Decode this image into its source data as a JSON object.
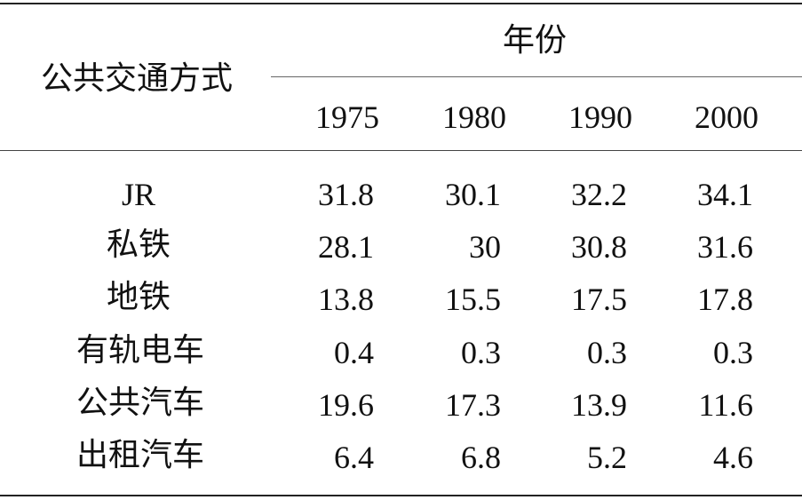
{
  "table": {
    "row_header": "公共交通方式",
    "group_header": "年份",
    "years": [
      "1975",
      "1980",
      "1990",
      "2000"
    ],
    "rows": [
      {
        "label": "JR",
        "values": [
          "31.8",
          "30.1",
          "32.2",
          "34.1"
        ]
      },
      {
        "label": "私铁",
        "values": [
          "28.1",
          "30",
          "30.8",
          "31.6"
        ]
      },
      {
        "label": "地铁",
        "values": [
          "13.8",
          "15.5",
          "17.5",
          "17.8"
        ]
      },
      {
        "label": "有轨电车",
        "values": [
          "0.4",
          "0.3",
          "0.3",
          "0.3"
        ]
      },
      {
        "label": "公共汽车",
        "values": [
          "19.6",
          "17.3",
          "13.9",
          "11.6"
        ]
      },
      {
        "label": "出租汽车",
        "values": [
          "6.4",
          "6.8",
          "5.2",
          "4.6"
        ]
      }
    ]
  }
}
